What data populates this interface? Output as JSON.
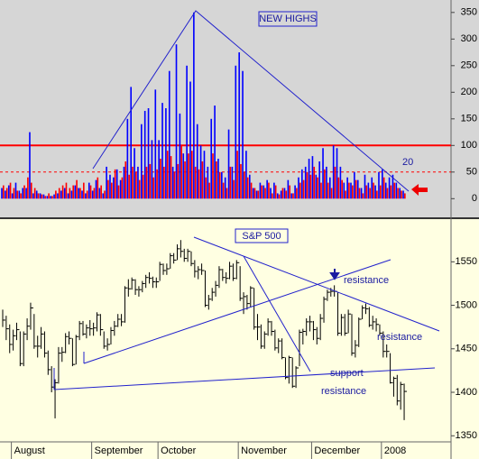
{
  "chart_data": [
    {
      "type": "bar",
      "title": "NEW HIGHS",
      "series": [
        {
          "color": "#0000ff",
          "values": [
            20,
            15,
            25,
            10,
            30,
            15,
            20,
            20,
            125,
            10,
            15,
            10,
            8,
            5,
            5,
            8,
            10,
            15,
            20,
            10,
            15,
            25,
            20,
            15,
            10,
            30,
            15,
            35,
            20,
            10,
            60,
            45,
            40,
            55,
            35,
            60,
            150,
            210,
            95,
            60,
            140,
            165,
            170,
            110,
            205,
            110,
            180,
            170,
            240,
            60,
            290,
            160,
            85,
            250,
            220,
            350,
            140,
            100,
            90,
            60,
            150,
            175,
            75,
            50,
            40,
            130,
            60,
            250,
            275,
            240,
            90,
            45,
            20,
            15,
            30,
            25,
            35,
            20,
            30,
            10,
            15,
            20,
            35,
            10,
            25,
            40,
            55,
            60,
            75,
            80,
            45,
            70,
            95,
            60,
            40,
            100,
            95,
            60,
            30,
            40,
            30,
            50,
            35,
            20,
            45,
            30,
            40,
            25,
            50,
            55,
            30,
            40,
            45,
            30,
            20,
            15
          ]
        },
        {
          "color": "#ff0000",
          "values": [
            25,
            20,
            30,
            20,
            15,
            10,
            25,
            40,
            30,
            20,
            10,
            8,
            5,
            10,
            5,
            15,
            20,
            25,
            30,
            20,
            25,
            35,
            20,
            30,
            15,
            25,
            20,
            40,
            25,
            15,
            35,
            30,
            55,
            25,
            40,
            70,
            45,
            60,
            50,
            35,
            45,
            60,
            65,
            40,
            55,
            75,
            60,
            90,
            80,
            50,
            65,
            100,
            70,
            85,
            90,
            60,
            55,
            70,
            40,
            30,
            85,
            70,
            50,
            30,
            20,
            60,
            35,
            90,
            65,
            50,
            40,
            30,
            20,
            15,
            25,
            20,
            30,
            10,
            25,
            8,
            20,
            15,
            25,
            10,
            20,
            30,
            35,
            50,
            45,
            60,
            40,
            30,
            55,
            30,
            20,
            60,
            40,
            35,
            15,
            30,
            25,
            35,
            20,
            10,
            25,
            20,
            30,
            15,
            25,
            40,
            20,
            25,
            30,
            20,
            15,
            10
          ]
        }
      ],
      "ylim": [
        -30,
        370
      ],
      "yticks": [
        0,
        50,
        100,
        150,
        200,
        250,
        300,
        350
      ],
      "hlines": [
        {
          "value": 100,
          "style": "solid"
        },
        {
          "value": 50,
          "style": "dashed"
        }
      ],
      "hline_color": "#ff0000",
      "annotations": [
        "20"
      ]
    },
    {
      "type": "hlc",
      "title": "S&P 500",
      "categories": [
        null,
        null,
        null,
        "August",
        null,
        null,
        null,
        null,
        null,
        null,
        null,
        null,
        null,
        null,
        null,
        null,
        null,
        null,
        null,
        null,
        null,
        null,
        null,
        null,
        null,
        null,
        "September",
        null,
        null,
        null,
        null,
        null,
        null,
        null,
        null,
        null,
        null,
        null,
        null,
        null,
        null,
        null,
        null,
        null,
        null,
        "October",
        null,
        null,
        null,
        null,
        null,
        null,
        null,
        null,
        null,
        null,
        null,
        null,
        null,
        null,
        null,
        null,
        null,
        null,
        null,
        null,
        null,
        null,
        "November",
        null,
        null,
        null,
        null,
        null,
        null,
        null,
        null,
        null,
        null,
        null,
        null,
        null,
        null,
        null,
        null,
        null,
        null,
        null,
        null,
        "December",
        null,
        null,
        null,
        null,
        null,
        null,
        null,
        null,
        null,
        null,
        null,
        null,
        null,
        null,
        null,
        null,
        null,
        null,
        null,
        "2008",
        null,
        null,
        null,
        null,
        null,
        null
      ],
      "high": [
        1495,
        1488,
        1478,
        1472,
        1480,
        1470,
        1470,
        1485,
        1503,
        1490,
        1465,
        1475,
        1470,
        1448,
        1430,
        1415,
        1452,
        1452,
        1468,
        1470,
        1462,
        1466,
        1482,
        1482,
        1478,
        1483,
        1480,
        1492,
        1490,
        1470,
        1462,
        1475,
        1482,
        1490,
        1490,
        1522,
        1530,
        1532,
        1530,
        1522,
        1528,
        1535,
        1538,
        1533,
        1532,
        1550,
        1548,
        1548,
        1560,
        1560,
        1570,
        1575,
        1565,
        1565,
        1562,
        1552,
        1545,
        1548,
        1540,
        1512,
        1520,
        1528,
        1545,
        1542,
        1538,
        1550,
        1548,
        1552,
        1545,
        1515,
        1512,
        1522,
        1520,
        1490,
        1478,
        1470,
        1485,
        1482,
        1472,
        1462,
        1462,
        1440,
        1442,
        1440,
        1430,
        1472,
        1473,
        1485,
        1488,
        1482,
        1475,
        1490,
        1510,
        1518,
        1520,
        1523,
        1515,
        1490,
        1490,
        1495,
        1490,
        1460,
        1486,
        1500,
        1502,
        1498,
        1488,
        1485,
        1478,
        1470,
        1455,
        1445,
        1418,
        1420,
        1412,
        1410
      ],
      "low": [
        1475,
        1460,
        1445,
        1448,
        1460,
        1430,
        1430,
        1460,
        1472,
        1450,
        1440,
        1450,
        1440,
        1420,
        1400,
        1370,
        1410,
        1435,
        1445,
        1455,
        1430,
        1432,
        1460,
        1465,
        1462,
        1465,
        1465,
        1470,
        1465,
        1450,
        1448,
        1455,
        1465,
        1475,
        1476,
        1480,
        1510,
        1518,
        1512,
        1510,
        1515,
        1520,
        1525,
        1520,
        1520,
        1528,
        1535,
        1535,
        1542,
        1548,
        1552,
        1555,
        1550,
        1550,
        1545,
        1532,
        1530,
        1535,
        1498,
        1495,
        1505,
        1510,
        1520,
        1528,
        1525,
        1530,
        1528,
        1530,
        1505,
        1490,
        1495,
        1498,
        1472,
        1460,
        1450,
        1450,
        1465,
        1465,
        1448,
        1445,
        1438,
        1415,
        1410,
        1405,
        1405,
        1430,
        1455,
        1465,
        1470,
        1460,
        1455,
        1460,
        1480,
        1505,
        1510,
        1510,
        1465,
        1465,
        1465,
        1468,
        1442,
        1440,
        1452,
        1484,
        1490,
        1475,
        1472,
        1470,
        1465,
        1440,
        1440,
        1410,
        1395,
        1385,
        1380,
        1368
      ],
      "close": [
        1483,
        1473,
        1455,
        1465,
        1472,
        1433,
        1467,
        1476,
        1497,
        1453,
        1453,
        1467,
        1445,
        1426,
        1406,
        1411,
        1445,
        1446,
        1464,
        1462,
        1432,
        1464,
        1479,
        1467,
        1474,
        1473,
        1474,
        1489,
        1472,
        1453,
        1455,
        1471,
        1476,
        1484,
        1481,
        1520,
        1519,
        1529,
        1518,
        1518,
        1525,
        1532,
        1531,
        1527,
        1527,
        1547,
        1540,
        1542,
        1557,
        1552,
        1565,
        1562,
        1554,
        1562,
        1548,
        1539,
        1541,
        1540,
        1500,
        1507,
        1515,
        1523,
        1541,
        1532,
        1531,
        1545,
        1531,
        1549,
        1508,
        1510,
        1502,
        1520,
        1475,
        1475,
        1453,
        1467,
        1481,
        1470,
        1451,
        1459,
        1440,
        1417,
        1440,
        1407,
        1428,
        1469,
        1470,
        1481,
        1481,
        1472,
        1462,
        1485,
        1507,
        1515,
        1516,
        1516,
        1468,
        1486,
        1468,
        1490,
        1445,
        1454,
        1484,
        1497,
        1496,
        1477,
        1481,
        1478,
        1468,
        1447,
        1447,
        1411,
        1416,
        1390,
        1409,
        1401
      ],
      "color": "#000000",
      "ylim": [
        1343,
        1597
      ],
      "yticks": [
        1350,
        1400,
        1450,
        1500,
        1550
      ],
      "annotations": [
        "resistance",
        "resistance",
        "support",
        "resistance"
      ]
    }
  ]
}
